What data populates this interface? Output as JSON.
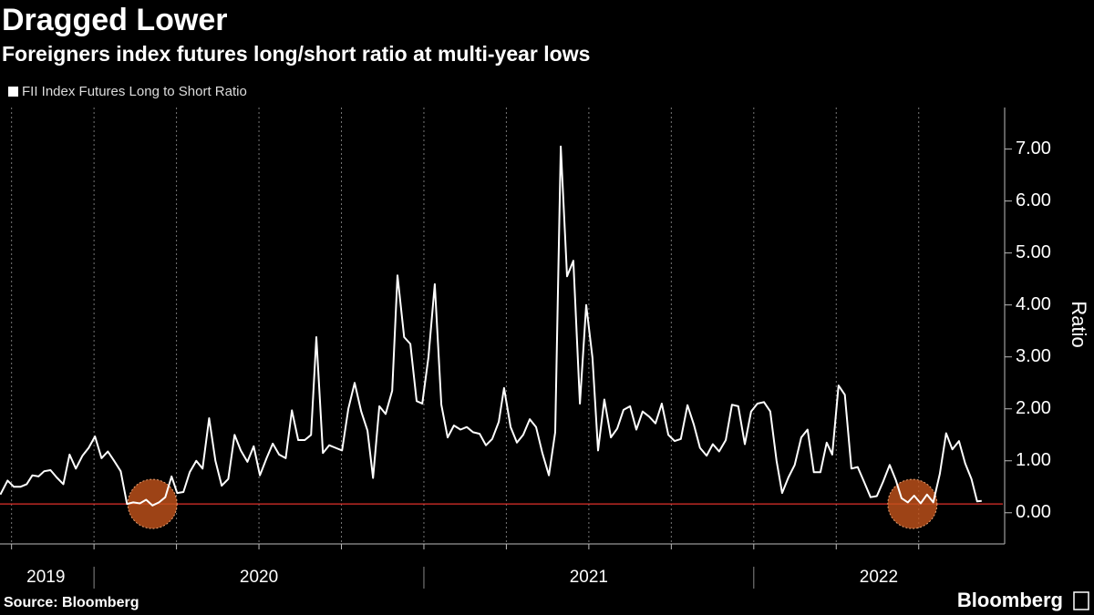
{
  "chart_data": {
    "type": "line",
    "title": "Dragged Lower",
    "subtitle": "Foreigners index futures long/short ratio at multi-year lows",
    "y_label": "Ratio",
    "source": "Source: Bloomberg",
    "brand": "Bloomberg",
    "series": [
      {
        "name": "FII Index Futures Long to Short Ratio",
        "color": "#ffffff",
        "x": [
          2019.716,
          2019.738,
          2019.757,
          2019.777,
          2019.796,
          2019.813,
          2019.832,
          2019.849,
          2019.868,
          2019.887,
          2019.907,
          2019.926,
          2019.945,
          2019.965,
          2019.984,
          2020.003,
          2020.023,
          2020.042,
          2020.061,
          2020.081,
          2020.1,
          2020.119,
          2020.139,
          2020.158,
          2020.177,
          2020.197,
          2020.216,
          2020.235,
          2020.252,
          2020.271,
          2020.29,
          2020.31,
          2020.329,
          2020.349,
          2020.368,
          2020.387,
          2020.407,
          2020.426,
          2020.445,
          2020.465,
          2020.484,
          2020.503,
          2020.523,
          2020.542,
          2020.561,
          2020.581,
          2020.6,
          2020.619,
          2020.639,
          2020.658,
          2020.674,
          2020.694,
          2020.713,
          2020.732,
          2020.752,
          2020.771,
          2020.79,
          2020.81,
          2020.829,
          2020.846,
          2020.865,
          2020.884,
          2020.904,
          2020.92,
          2020.94,
          2020.959,
          2020.978,
          2020.995,
          2021.014,
          2021.033,
          2021.053,
          2021.072,
          2021.091,
          2021.111,
          2021.13,
          2021.149,
          2021.169,
          2021.188,
          2021.207,
          2021.227,
          2021.243,
          2021.263,
          2021.282,
          2021.301,
          2021.321,
          2021.34,
          2021.359,
          2021.379,
          2021.398,
          2021.415,
          2021.434,
          2021.453,
          2021.473,
          2021.492,
          2021.511,
          2021.528,
          2021.547,
          2021.567,
          2021.586,
          2021.605,
          2021.625,
          2021.644,
          2021.663,
          2021.683,
          2021.702,
          2021.721,
          2021.741,
          2021.76,
          2021.779,
          2021.799,
          2021.818,
          2021.837,
          2021.857,
          2021.876,
          2021.895,
          2021.915,
          2021.934,
          2021.953,
          2021.973,
          2021.992,
          2022.011,
          2022.031,
          2022.05,
          2022.069,
          2022.086,
          2022.105,
          2022.124,
          2022.144,
          2022.163,
          2022.182,
          2022.202,
          2022.221,
          2022.238,
          2022.257,
          2022.276,
          2022.296,
          2022.315,
          2022.334,
          2022.354,
          2022.373,
          2022.392,
          2022.412,
          2022.431,
          2022.448,
          2022.467,
          2022.486,
          2022.506,
          2022.525,
          2022.544,
          2022.564,
          2022.583,
          2022.602,
          2022.622,
          2022.641,
          2022.66,
          2022.677,
          2022.691
        ],
        "values": [
          0.35,
          0.62,
          0.5,
          0.5,
          0.55,
          0.72,
          0.7,
          0.8,
          0.82,
          0.68,
          0.55,
          1.12,
          0.85,
          1.1,
          1.25,
          1.47,
          1.05,
          1.18,
          1.0,
          0.8,
          0.17,
          0.2,
          0.18,
          0.25,
          0.14,
          0.2,
          0.3,
          0.7,
          0.38,
          0.4,
          0.78,
          1.0,
          0.85,
          1.82,
          1.0,
          0.52,
          0.65,
          1.5,
          1.2,
          0.98,
          1.28,
          0.72,
          1.05,
          1.33,
          1.12,
          1.05,
          1.97,
          1.4,
          1.4,
          1.5,
          3.38,
          1.15,
          1.3,
          1.25,
          1.2,
          2.0,
          2.5,
          1.95,
          1.58,
          0.67,
          2.05,
          1.9,
          2.35,
          4.57,
          3.38,
          3.25,
          2.15,
          2.1,
          3.0,
          4.4,
          2.08,
          1.45,
          1.68,
          1.6,
          1.65,
          1.55,
          1.52,
          1.3,
          1.42,
          1.75,
          2.4,
          1.65,
          1.35,
          1.5,
          1.8,
          1.65,
          1.15,
          0.72,
          1.55,
          7.05,
          4.55,
          4.85,
          2.1,
          4.0,
          2.98,
          1.2,
          2.18,
          1.45,
          1.62,
          1.98,
          2.05,
          1.6,
          1.95,
          1.85,
          1.72,
          2.1,
          1.5,
          1.38,
          1.42,
          2.07,
          1.7,
          1.25,
          1.1,
          1.32,
          1.18,
          1.4,
          2.08,
          2.05,
          1.32,
          1.95,
          2.1,
          2.13,
          1.95,
          1.0,
          0.38,
          0.68,
          0.92,
          1.45,
          1.6,
          0.78,
          0.78,
          1.35,
          1.12,
          2.45,
          2.27,
          0.85,
          0.88,
          0.6,
          0.3,
          0.32,
          0.6,
          0.92,
          0.62,
          0.28,
          0.2,
          0.33,
          0.18,
          0.35,
          0.2,
          0.75,
          1.53,
          1.22,
          1.38,
          0.95,
          0.65,
          0.22,
          0.23
        ]
      }
    ],
    "reference_line": {
      "value": 0.17,
      "color": "#e0302a"
    },
    "highlights": [
      {
        "x": 2020.177,
        "y": 0.17
      },
      {
        "x": 2022.481,
        "y": 0.17
      }
    ],
    "xlim": [
      2019.715,
      2022.755
    ],
    "ylim": [
      -0.6,
      7.8
    ],
    "yticks": [
      {
        "value": 0,
        "label": "0.00"
      },
      {
        "value": 1,
        "label": "1.00"
      },
      {
        "value": 2,
        "label": "2.00"
      },
      {
        "value": 3,
        "label": "3.00"
      },
      {
        "value": 4,
        "label": "4.00"
      },
      {
        "value": 5,
        "label": "5.00"
      },
      {
        "value": 6,
        "label": "6.00"
      },
      {
        "value": 7,
        "label": "7.00"
      }
    ],
    "xticks": [
      {
        "value": 2019.854,
        "label": "2019"
      },
      {
        "value": 2020.5,
        "label": "2020"
      },
      {
        "value": 2021.5,
        "label": "2021"
      },
      {
        "value": 2022.379,
        "label": "2022"
      }
    ],
    "year_boundaries": [
      2020,
      2021,
      2022
    ],
    "xgrid": [
      2019.75,
      2020,
      2020.25,
      2020.5,
      2020.75,
      2021,
      2021.25,
      2021.5,
      2021.75,
      2022,
      2022.25,
      2022.5
    ]
  }
}
